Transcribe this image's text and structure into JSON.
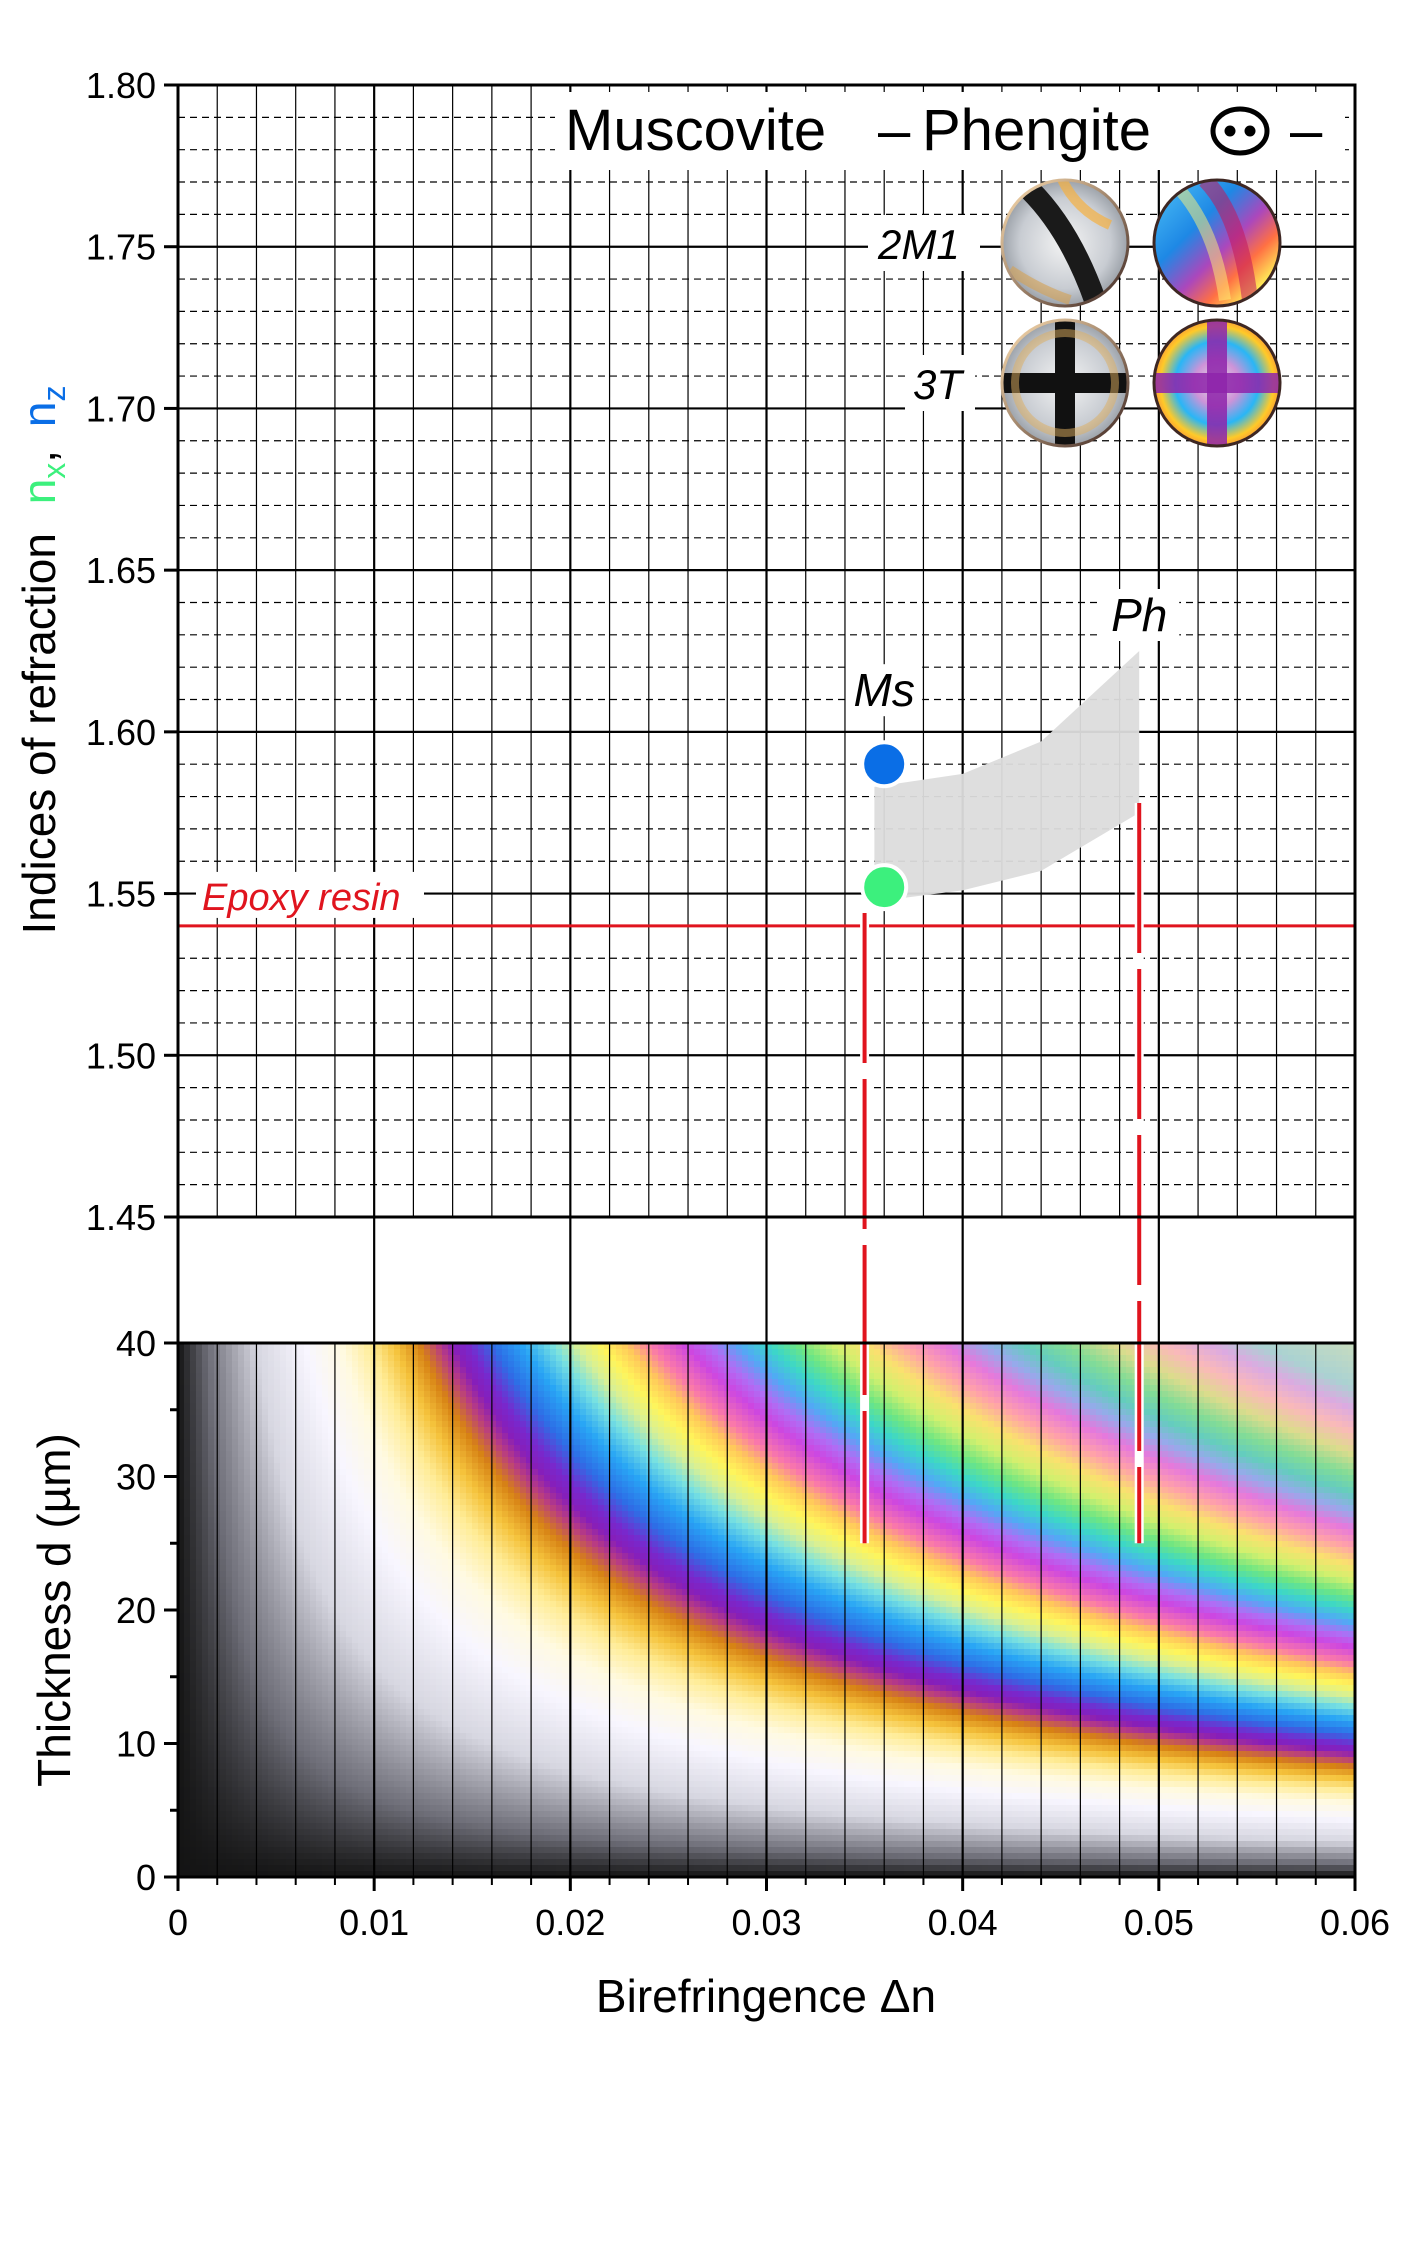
{
  "chart_data": {
    "type": "scatter",
    "title": "Muscovite",
    "title_dash": "–",
    "title_part2": "Phengite",
    "optic_sign": "–",
    "xlabel": "Birefringence  Δn",
    "xlim": [
      0,
      0.06
    ],
    "x_ticks": [
      "0",
      "0.01",
      "0.02",
      "0.03",
      "0.04",
      "0.05",
      "0.06"
    ],
    "x_tick_values": [
      0,
      0.01,
      0.02,
      0.03,
      0.04,
      0.05,
      0.06
    ],
    "upper_panel": {
      "ylabel": "Indices of refraction",
      "ylabel_nx": "n",
      "ylabel_nx_sub": "x",
      "ylabel_sep": ",",
      "ylabel_nz": "n",
      "ylabel_nz_sub": "z",
      "ylim": [
        1.45,
        1.8
      ],
      "y_ticks": [
        "1.45",
        "1.50",
        "1.55",
        "1.60",
        "1.65",
        "1.70",
        "1.75",
        "1.80"
      ],
      "y_tick_values": [
        1.45,
        1.5,
        1.55,
        1.6,
        1.65,
        1.7,
        1.75,
        1.8
      ],
      "grid": true,
      "reference_line": {
        "label": "Epoxy resin",
        "y": 1.54,
        "color": "#e0141e"
      },
      "series": [
        {
          "name": "Ms",
          "x": 0.036,
          "nx": 1.552,
          "nz": 1.59
        }
      ],
      "ph_label": "Ph",
      "range_band": {
        "upper": [
          [
            0.0355,
            1.583
          ],
          [
            0.04,
            1.587
          ],
          [
            0.044,
            1.597
          ],
          [
            0.049,
            1.625
          ]
        ],
        "lower": [
          [
            0.0355,
            1.5475
          ],
          [
            0.04,
            1.551
          ],
          [
            0.044,
            1.557
          ],
          [
            0.049,
            1.575
          ]
        ]
      },
      "birefringence_markers": [
        {
          "x": 0.035,
          "top": 1.544,
          "bottom_d": 25
        },
        {
          "x": 0.049,
          "top": 1.578,
          "bottom_d": 25
        }
      ],
      "conoscopic_labels": [
        "2M1",
        "3T"
      ]
    },
    "lower_panel": {
      "type": "heatmap",
      "description_free": true,
      "ylabel": "Thickness  d (µm)",
      "ylim": [
        0,
        40
      ],
      "y_ticks": [
        "0",
        "10",
        "20",
        "30",
        "40"
      ],
      "y_tick_values": [
        0,
        10,
        20,
        30,
        40
      ]
    },
    "colors": {
      "nx": "#3cf07d",
      "nz": "#0a6ee6",
      "epoxy": "#e0141e",
      "band": "#dcdcdc"
    }
  }
}
